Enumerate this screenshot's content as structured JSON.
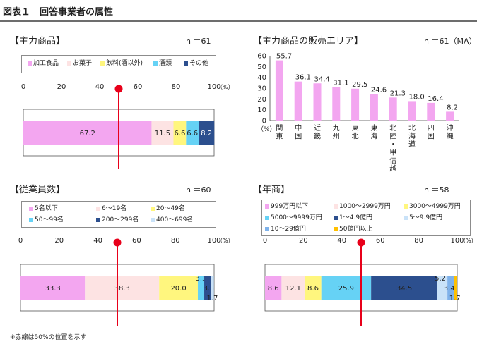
{
  "header": {
    "title": "図表１　回答事業者の属性"
  },
  "panels": {
    "main_products": {
      "title": "【主力商品】",
      "n_label": "n ＝61",
      "legend": [
        "加工食品",
        "お菓子",
        "飲料(酒以外)",
        "酒類",
        "その他"
      ]
    },
    "sales_area": {
      "title": "【主力商品の販売エリア】",
      "n_label": "n ＝61（MA）"
    },
    "employees": {
      "title": "【従業員数】",
      "n_label": "n ＝60",
      "legend": [
        "5名以下",
        "6～19名",
        "20～49名",
        "50～99名",
        "200～299名",
        "400～699名"
      ]
    },
    "sales": {
      "title": "【年商】",
      "n_label": "n ＝58",
      "legend": [
        "999万円以下",
        "1000～2999万円",
        "3000～4999万円",
        "5000～9999万円",
        "1～4.9億円",
        "5～9.9億円",
        "10～29億円",
        "50億円以上"
      ]
    }
  },
  "footnote": "※赤線は50%の位置を示す",
  "colors": {
    "pink": "#f3a6f0",
    "peach": "#fde3e3",
    "yellow": "#fff67e",
    "cyan": "#66d2f5",
    "navy": "#2c4f8e",
    "pale_blue": "#c9e2f8",
    "blue": "#7fb2ea",
    "orange": "#ffc000",
    "red": "#e8001a",
    "axis": "#444444"
  },
  "chart_data": [
    {
      "type": "bar",
      "orientation": "horizontal-stacked",
      "title": "【主力商品】",
      "series": [
        {
          "name": "加工食品",
          "values": [
            67.2
          ]
        },
        {
          "name": "お菓子",
          "values": [
            11.5
          ]
        },
        {
          "name": "飲料(酒以外)",
          "values": [
            6.6
          ]
        },
        {
          "name": "酒類",
          "values": [
            6.6
          ]
        },
        {
          "name": "その他",
          "values": [
            8.2
          ]
        }
      ],
      "xlim": [
        0,
        100
      ],
      "xticks": [
        "0",
        "20",
        "40",
        "60",
        "80",
        "100"
      ],
      "xunit": "（%）",
      "reference_line": 50
    },
    {
      "type": "bar",
      "title": "【主力商品の販売エリア】",
      "categories": [
        "関東",
        "中国",
        "近畿",
        "九州",
        "東北",
        "東海",
        "北陸・甲信越",
        "北海道",
        "四国",
        "沖縄"
      ],
      "values": [
        55.7,
        36.1,
        34.4,
        31.1,
        29.5,
        24.6,
        21.3,
        18.0,
        16.4,
        8.2
      ],
      "value_labels": [
        "55.7",
        "36.1",
        "34.4",
        "31.1",
        "29.5",
        "24.6",
        "21.3",
        "18.0",
        "16.4",
        "8.2"
      ],
      "ylim": [
        0,
        60
      ],
      "yticks": [
        "0",
        "10",
        "20",
        "30",
        "40",
        "50",
        "60"
      ],
      "yunit": "（%）"
    },
    {
      "type": "bar",
      "orientation": "horizontal-stacked",
      "title": "【従業員数】",
      "series": [
        {
          "name": "5名以下",
          "values": [
            33.3
          ]
        },
        {
          "name": "6～19名",
          "values": [
            38.3
          ]
        },
        {
          "name": "20～49名",
          "values": [
            20.0
          ]
        },
        {
          "name": "50～99名",
          "values": [
            3.3
          ]
        },
        {
          "name": "200～299名",
          "values": [
            3.3
          ]
        },
        {
          "name": "400～699名",
          "values": [
            1.7
          ]
        }
      ],
      "xlim": [
        0,
        100
      ],
      "xticks": [
        "0",
        "20",
        "40",
        "60",
        "80",
        "100"
      ],
      "xunit": "（%）",
      "reference_line": 50
    },
    {
      "type": "bar",
      "orientation": "horizontal-stacked",
      "title": "【年商】",
      "series": [
        {
          "name": "999万円以下",
          "values": [
            8.6
          ]
        },
        {
          "name": "1000～2999万円",
          "values": [
            12.1
          ]
        },
        {
          "name": "3000～4999万円",
          "values": [
            8.6
          ]
        },
        {
          "name": "5000～9999万円",
          "values": [
            25.9
          ]
        },
        {
          "name": "1～4.9億円",
          "values": [
            34.5
          ]
        },
        {
          "name": "5～9.9億円",
          "values": [
            5.2
          ]
        },
        {
          "name": "10～29億円",
          "values": [
            3.4
          ]
        },
        {
          "name": "50億円以上",
          "values": [
            1.7
          ]
        }
      ],
      "xlim": [
        0,
        100
      ],
      "xticks": [
        "0",
        "20",
        "40",
        "60",
        "80",
        "100"
      ],
      "xunit": "（%）",
      "reference_line": 50
    }
  ]
}
